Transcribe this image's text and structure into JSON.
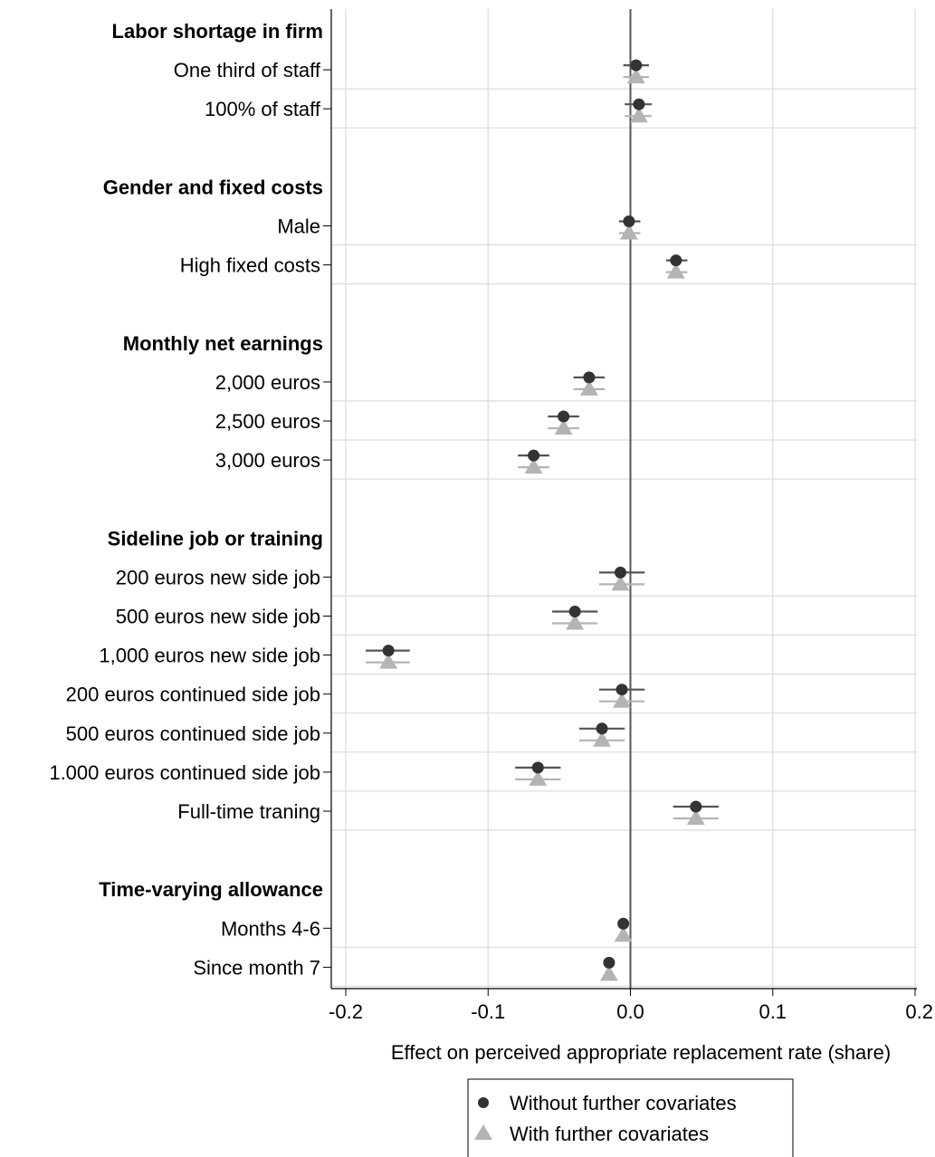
{
  "chart_data": {
    "type": "scatter",
    "orientation": "horizontal",
    "xlabel": "Effect on perceived appropriate replacement rate (share)",
    "xlim": [
      -0.2,
      0.2
    ],
    "x_ticks": [
      "-0.2",
      "-0.1",
      "0.0",
      "0.1",
      "0.2"
    ],
    "x_tick_values": [
      -0.2,
      -0.1,
      0.0,
      0.1,
      0.2
    ],
    "grid": true,
    "reference_line_x": 0,
    "legend_position": "bottom-center",
    "colors": {
      "without": "#333333",
      "with": "#b4b4b4",
      "grid": "#dcdcdc",
      "ref": "#555555"
    },
    "series": [
      {
        "name": "Without further covariates",
        "marker": "circle"
      },
      {
        "name": "With further covariates",
        "marker": "triangle"
      }
    ],
    "rows": [
      {
        "kind": "group",
        "label": "Labor shortage in firm"
      },
      {
        "kind": "item",
        "label": "One third of staff",
        "without": {
          "est": 0.004,
          "lo": -0.005,
          "hi": 0.013
        },
        "with": {
          "est": 0.004,
          "lo": -0.005,
          "hi": 0.013
        }
      },
      {
        "kind": "item",
        "label": "100% of staff",
        "without": {
          "est": 0.006,
          "lo": -0.004,
          "hi": 0.015
        },
        "with": {
          "est": 0.006,
          "lo": -0.004,
          "hi": 0.015
        }
      },
      {
        "kind": "spacer"
      },
      {
        "kind": "group",
        "label": "Gender and fixed costs"
      },
      {
        "kind": "item",
        "label": "Male",
        "without": {
          "est": -0.001,
          "lo": -0.008,
          "hi": 0.007
        },
        "with": {
          "est": -0.001,
          "lo": -0.008,
          "hi": 0.007
        }
      },
      {
        "kind": "item",
        "label": "High fixed costs",
        "without": {
          "est": 0.032,
          "lo": 0.025,
          "hi": 0.04
        },
        "with": {
          "est": 0.032,
          "lo": 0.025,
          "hi": 0.04
        }
      },
      {
        "kind": "spacer"
      },
      {
        "kind": "group",
        "label": "Monthly net earnings"
      },
      {
        "kind": "item",
        "label": "2,000 euros",
        "without": {
          "est": -0.029,
          "lo": -0.04,
          "hi": -0.018
        },
        "with": {
          "est": -0.029,
          "lo": -0.04,
          "hi": -0.018
        }
      },
      {
        "kind": "item",
        "label": "2,500 euros",
        "without": {
          "est": -0.047,
          "lo": -0.058,
          "hi": -0.036
        },
        "with": {
          "est": -0.047,
          "lo": -0.058,
          "hi": -0.036
        }
      },
      {
        "kind": "item",
        "label": "3,000 euros",
        "without": {
          "est": -0.068,
          "lo": -0.079,
          "hi": -0.057
        },
        "with": {
          "est": -0.068,
          "lo": -0.079,
          "hi": -0.057
        }
      },
      {
        "kind": "spacer"
      },
      {
        "kind": "group",
        "label": "Sideline job or training"
      },
      {
        "kind": "item",
        "label": "200 euros new side job",
        "without": {
          "est": -0.007,
          "lo": -0.022,
          "hi": 0.01
        },
        "with": {
          "est": -0.007,
          "lo": -0.022,
          "hi": 0.01
        }
      },
      {
        "kind": "item",
        "label": "500 euros new side job",
        "without": {
          "est": -0.039,
          "lo": -0.055,
          "hi": -0.023
        },
        "with": {
          "est": -0.039,
          "lo": -0.055,
          "hi": -0.023
        }
      },
      {
        "kind": "item",
        "label": "1,000 euros new side job",
        "without": {
          "est": -0.17,
          "lo": -0.186,
          "hi": -0.155
        },
        "with": {
          "est": -0.17,
          "lo": -0.186,
          "hi": -0.155
        }
      },
      {
        "kind": "item",
        "label": "200 euros continued side job",
        "without": {
          "est": -0.006,
          "lo": -0.022,
          "hi": 0.01
        },
        "with": {
          "est": -0.006,
          "lo": -0.022,
          "hi": 0.01
        }
      },
      {
        "kind": "item",
        "label": "500 euros continued side job",
        "without": {
          "est": -0.02,
          "lo": -0.036,
          "hi": -0.004
        },
        "with": {
          "est": -0.02,
          "lo": -0.036,
          "hi": -0.004
        }
      },
      {
        "kind": "item",
        "label": "1.000 euros continued side job",
        "without": {
          "est": -0.065,
          "lo": -0.081,
          "hi": -0.049
        },
        "with": {
          "est": -0.065,
          "lo": -0.081,
          "hi": -0.049
        }
      },
      {
        "kind": "item",
        "label": "Full-time traning",
        "without": {
          "est": 0.046,
          "lo": 0.03,
          "hi": 0.062
        },
        "with": {
          "est": 0.046,
          "lo": 0.03,
          "hi": 0.062
        }
      },
      {
        "kind": "spacer"
      },
      {
        "kind": "group",
        "label": "Time-varying allowance"
      },
      {
        "kind": "item",
        "label": "Months 4-6",
        "without": {
          "est": -0.005,
          "lo": -0.005,
          "hi": -0.005
        },
        "with": {
          "est": -0.005,
          "lo": -0.005,
          "hi": -0.005
        }
      },
      {
        "kind": "item",
        "label": "Since month 7",
        "without": {
          "est": -0.015,
          "lo": -0.015,
          "hi": -0.015
        },
        "with": {
          "est": -0.015,
          "lo": -0.015,
          "hi": -0.015
        }
      }
    ]
  }
}
